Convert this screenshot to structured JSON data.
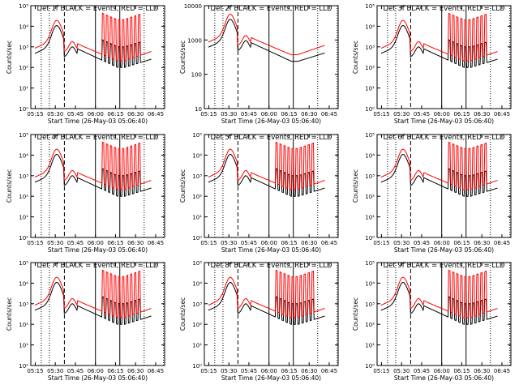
{
  "chart_data": [
    {
      "type": "line",
      "title": "Det 1f BLACK = Events, RED = LLD",
      "ylabel": "Counts/sec",
      "xlabel": "Start Time (26-May-03 05:06:40)",
      "xticks": [
        "05:15",
        "05:30",
        "05:45",
        "06:00",
        "06:15",
        "06:30",
        "06:45"
      ],
      "yticks": [
        "10⁰",
        "10¹",
        "10²",
        "10³",
        "10⁴",
        "10⁵"
      ],
      "ylim": [
        1,
        100000
      ],
      "xlim_minutes": [
        5,
        105
      ],
      "series": [
        {
          "name": "Events",
          "color": "#000000"
        },
        {
          "name": "LLD",
          "color": "#ff0000"
        }
      ],
      "markers": {
        "dotted": [
          12.8,
          18.9,
          89.7,
          104.2
        ],
        "dashed": [
          30.1
        ],
        "solid": [
          53.3,
          71.5
        ]
      }
    },
    {
      "type": "line",
      "title": "Det 2f BLACK = Events, RED = LLD",
      "ylabel": "Counts/sec",
      "xlabel": "Start Time (26-May-03 05:06:40)",
      "xticks": [
        "05:15",
        "05:30",
        "05:45",
        "06:00",
        "06:15",
        "06:30",
        "06:45"
      ],
      "yticks": [
        "10",
        "100",
        "1000",
        "10000"
      ],
      "ylim": [
        3,
        15000
      ],
      "xlim_minutes": [
        5,
        105
      ],
      "series": [
        {
          "name": "Events",
          "color": "#000000"
        },
        {
          "name": "LLD",
          "color": "#ff0000"
        }
      ],
      "markers": {
        "dotted": [
          12.8,
          18.9,
          89.7,
          104.2
        ],
        "dashed": [
          30.1
        ],
        "solid": [
          53.3,
          71.5
        ]
      }
    },
    {
      "type": "line",
      "title": "Det 3f BLACK = Events, RED = LLD",
      "ylabel": "Counts/sec",
      "xlabel": "Start Time (26-May-03 05:06:40)",
      "xticks": [
        "05:15",
        "05:30",
        "05:45",
        "06:00",
        "06:15",
        "06:30",
        "06:45"
      ],
      "yticks": [
        "10⁰",
        "10¹",
        "10²",
        "10³",
        "10⁴",
        "10⁵"
      ],
      "ylim": [
        1,
        100000
      ],
      "xlim_minutes": [
        5,
        105
      ],
      "series": [
        {
          "name": "Events",
          "color": "#000000"
        },
        {
          "name": "LLD",
          "color": "#ff0000"
        }
      ],
      "markers": {
        "dotted": [
          12.8,
          18.9,
          89.7,
          104.2
        ],
        "dashed": [
          30.1
        ],
        "solid": [
          53.3,
          71.5
        ]
      }
    },
    {
      "type": "line",
      "title": "Det 4f BLACK = Events, RED = LLD",
      "ylabel": "Counts/sec",
      "xlabel": "Start Time (26-May-03 05:06:40)",
      "xticks": [
        "05:15",
        "05:30",
        "05:45",
        "06:00",
        "06:15",
        "06:30",
        "06:45"
      ],
      "yticks": [
        "10⁰",
        "10¹",
        "10²",
        "10³",
        "10⁴",
        "10⁵"
      ],
      "ylim": [
        1,
        100000
      ],
      "xlim_minutes": [
        5,
        105
      ],
      "series": [
        {
          "name": "Events",
          "color": "#000000"
        },
        {
          "name": "LLD",
          "color": "#ff0000"
        }
      ],
      "markers": {
        "dotted": [
          12.8,
          18.9,
          89.7,
          104.2
        ],
        "dashed": [
          30.1
        ],
        "solid": [
          53.3,
          71.5
        ]
      }
    },
    {
      "type": "line",
      "title": "Det 5f BLACK = Events, RED = LLD",
      "ylabel": "Counts/sec",
      "xlabel": "Start Time (26-May-03 05:06:40)",
      "xticks": [
        "05:15",
        "05:30",
        "05:45",
        "06:00",
        "06:15",
        "06:30",
        "06:45"
      ],
      "yticks": [
        "10⁰",
        "10¹",
        "10²",
        "10³",
        "10⁴",
        "10⁵"
      ],
      "ylim": [
        1,
        100000
      ],
      "xlim_minutes": [
        5,
        105
      ],
      "series": [
        {
          "name": "Events",
          "color": "#000000"
        },
        {
          "name": "LLD",
          "color": "#ff0000"
        }
      ],
      "markers": {
        "dotted": [
          12.8,
          18.9,
          89.7,
          104.2
        ],
        "dashed": [
          30.1
        ],
        "solid": [
          53.3,
          71.5
        ]
      }
    },
    {
      "type": "line",
      "title": "Det 6f BLACK = Events, RED = LLD",
      "ylabel": "Counts/sec",
      "xlabel": "Start Time (26-May-03 05:06:40)",
      "xticks": [
        "05:15",
        "05:30",
        "05:45",
        "06:00",
        "06:15",
        "06:30",
        "06:45"
      ],
      "yticks": [
        "10⁰",
        "10¹",
        "10²",
        "10³",
        "10⁴",
        "10⁵"
      ],
      "ylim": [
        1,
        100000
      ],
      "xlim_minutes": [
        5,
        105
      ],
      "series": [
        {
          "name": "Events",
          "color": "#000000"
        },
        {
          "name": "LLD",
          "color": "#ff0000"
        }
      ],
      "markers": {
        "dotted": [
          12.8,
          18.9,
          89.7,
          104.2
        ],
        "dashed": [
          30.1
        ],
        "solid": [
          53.3,
          71.5
        ]
      }
    },
    {
      "type": "line",
      "title": "Det 7f BLACK = Events, RED = LLD",
      "ylabel": "Counts/sec",
      "xlabel": "Start Time (26-May-03 05:06:40)",
      "xticks": [
        "05:15",
        "05:30",
        "05:45",
        "06:00",
        "06:15",
        "06:30",
        "06:45"
      ],
      "yticks": [
        "10⁰",
        "10¹",
        "10²",
        "10³",
        "10⁴",
        "10⁵"
      ],
      "ylim": [
        1,
        100000
      ],
      "xlim_minutes": [
        5,
        105
      ],
      "series": [
        {
          "name": "Events",
          "color": "#000000"
        },
        {
          "name": "LLD",
          "color": "#ff0000"
        }
      ],
      "markers": {
        "dotted": [
          12.8,
          18.9,
          89.7,
          104.2
        ],
        "dashed": [
          30.1
        ],
        "solid": [
          53.3,
          71.5
        ]
      }
    },
    {
      "type": "line",
      "title": "Det 8f BLACK = Events, RED = LLD",
      "ylabel": "Counts/sec",
      "xlabel": "Start Time (26-May-03 05:06:40)",
      "xticks": [
        "05:15",
        "05:30",
        "05:45",
        "06:00",
        "06:15",
        "06:30",
        "06:45"
      ],
      "yticks": [
        "10⁰",
        "10¹",
        "10²",
        "10³",
        "10⁴",
        "10⁵"
      ],
      "ylim": [
        1,
        100000
      ],
      "xlim_minutes": [
        5,
        105
      ],
      "series": [
        {
          "name": "Events",
          "color": "#000000"
        },
        {
          "name": "LLD",
          "color": "#ff0000"
        }
      ],
      "markers": {
        "dotted": [
          12.8,
          18.9,
          89.7,
          104.2
        ],
        "dashed": [
          30.1
        ],
        "solid": [
          53.3,
          71.5
        ]
      }
    },
    {
      "type": "line",
      "title": "Det 9f BLACK = Events, RED = LLD",
      "ylabel": "Counts/sec",
      "xlabel": "Start Time (26-May-03 05:06:40)",
      "xticks": [
        "05:15",
        "05:30",
        "05:45",
        "06:00",
        "06:15",
        "06:30",
        "06:45"
      ],
      "yticks": [
        "10⁰",
        "10¹",
        "10²",
        "10³",
        "10⁴",
        "10⁵"
      ],
      "ylim": [
        1,
        100000
      ],
      "xlim_minutes": [
        5,
        105
      ],
      "series": [
        {
          "name": "Events",
          "color": "#000000"
        },
        {
          "name": "LLD",
          "color": "#ff0000"
        }
      ],
      "markers": {
        "dotted": [
          12.8,
          18.9,
          89.7,
          104.2
        ],
        "dashed": [
          30.1
        ],
        "solid": [
          53.3,
          71.5
        ]
      }
    }
  ]
}
